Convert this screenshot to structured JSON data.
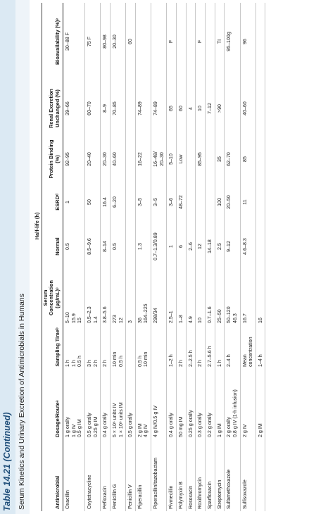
{
  "table_label": "Table 14.21 (Continued)",
  "caption": "Serum Kinetics and Urinary Excretion of Antimicrobials in Humans",
  "group_header": "Half-life (h)",
  "columns": [
    "Antimicrobial",
    "Dosage/Routeᵃ",
    "Sampling Timeᵇ",
    "Serum Concentration (µg/mL)ᶜ",
    "Normal",
    "ESRDᵈ",
    "Protein Binding (%)",
    "Renal Excretion Unchanged (%)",
    "Bioavailability (%)ᵉ"
  ],
  "rows": [
    {
      "name": "Oxacillin",
      "dose": [
        "1 g orally",
        "1 g IV",
        "0.5 g IM"
      ],
      "time": [
        "1 h",
        "1 h",
        "0.5 h"
      ],
      "conc": [
        "5–10",
        "15.9",
        "15"
      ],
      "normal": [
        "0.5"
      ],
      "esrd": [
        "1"
      ],
      "binding": [
        "92–95"
      ],
      "renal": [
        "39–66"
      ],
      "bio": [
        "30–88 F"
      ]
    },
    {
      "name": "Oxytetracycline",
      "dose": [
        "0.5 g orally",
        "0.25 g IM"
      ],
      "time": [
        "3 h",
        "2 h"
      ],
      "conc": [
        "0.5–2.3",
        "1.4"
      ],
      "normal": [
        "8.5–9.6"
      ],
      "esrd": [
        "50"
      ],
      "binding": [
        "20–40"
      ],
      "renal": [
        "60–70"
      ],
      "bio": [
        "75 F"
      ]
    },
    {
      "name": "Pefloxacin",
      "dose": [
        "0.4 g orally"
      ],
      "time": [
        "2 h"
      ],
      "conc": [
        "3.8–5.6"
      ],
      "normal": [
        "8–14"
      ],
      "esrd": [
        "16.4"
      ],
      "binding": [
        "20–30"
      ],
      "renal": [
        "8–9"
      ],
      "bio": [
        "80–98"
      ]
    },
    {
      "name": "Penicillin G",
      "dose": [
        "5 × 10⁶ units IV",
        "1 × 10⁶ units IM"
      ],
      "time": [
        "10 min",
        "0.5 h"
      ],
      "conc": [
        "273",
        "12"
      ],
      "normal": [
        "0.5"
      ],
      "esrd": [
        "6–20"
      ],
      "binding": [
        "40–60"
      ],
      "renal": [
        "70–85"
      ],
      "bio": [
        "20–30"
      ]
    },
    {
      "name": "Penicillin V",
      "dose": [
        "0.5 g orally"
      ],
      "time": [
        ""
      ],
      "conc": [
        "3"
      ],
      "normal": [
        ""
      ],
      "esrd": [
        ""
      ],
      "binding": [
        ""
      ],
      "renal": [
        ""
      ],
      "bio": [
        "60"
      ]
    },
    {
      "name": "Piperacillin",
      "dose": [
        "2 g IM",
        "4 g IV"
      ],
      "time": [
        "0.5 h",
        "10 min"
      ],
      "conc": [
        "36",
        "164–225"
      ],
      "normal": [
        "1.3"
      ],
      "esrd": [
        "3–5"
      ],
      "binding": [
        "16–22"
      ],
      "renal": [
        "74–89"
      ],
      "bio": [
        ""
      ]
    },
    {
      "name": "Piperacillin/tazobactam",
      "dose": [
        "4 g IV/0.5 g IV"
      ],
      "time": [
        ""
      ],
      "conc": [
        "298/34"
      ],
      "normal": [
        "0.7–1.3/0.89"
      ],
      "esrd": [
        "3–5"
      ],
      "binding": [
        "16–48/",
        "20–30"
      ],
      "renal": [
        "74–89"
      ],
      "bio": [
        ""
      ]
    },
    {
      "name": "Pivmecillin",
      "dose": [
        "0.4 g orally"
      ],
      "time": [
        "1–2 h"
      ],
      "conc": [
        "2.5–1"
      ],
      "normal": [
        "1"
      ],
      "esrd": [
        "3–6"
      ],
      "binding": [
        "5–10"
      ],
      "renal": [
        "65"
      ],
      "bio": [
        "F"
      ]
    },
    {
      "name": "Polymyxin B",
      "dose": [
        "50 mg IM"
      ],
      "time": [
        "2 h"
      ],
      "conc": [
        "1–8"
      ],
      "normal": [
        "6"
      ],
      "esrd": [
        "48–72"
      ],
      "binding": [
        "Low"
      ],
      "renal": [
        "60"
      ],
      "bio": [
        ""
      ]
    },
    {
      "name": "Rosoxacin",
      "dose": [
        "0.25 g orally"
      ],
      "time": [
        "2–2.5 h"
      ],
      "conc": [
        "4.9"
      ],
      "normal": [
        "2–6"
      ],
      "esrd": [
        ""
      ],
      "binding": [
        ""
      ],
      "renal": [
        "4"
      ],
      "bio": [
        ""
      ]
    },
    {
      "name": "Roxithromycin",
      "dose": [
        "0.3 g orally"
      ],
      "time": [
        "2 h"
      ],
      "conc": [
        "10"
      ],
      "normal": [
        "12"
      ],
      "esrd": [
        ""
      ],
      "binding": [
        "85–95"
      ],
      "renal": [
        "10"
      ],
      "bio": [
        "F"
      ]
    },
    {
      "name": "Sparfloxacin",
      "dose": [
        "0.2 g orally"
      ],
      "time": [
        "2.7–5.6 h"
      ],
      "conc": [
        "0.7–1.6"
      ],
      "normal": [
        "14–18"
      ],
      "esrd": [
        ""
      ],
      "binding": [
        ""
      ],
      "renal": [
        "7–12"
      ],
      "bio": [
        ""
      ]
    },
    {
      "name": "Streptomycin",
      "dose": [
        "1 g IM"
      ],
      "time": [
        "1 h"
      ],
      "conc": [
        "25–50"
      ],
      "normal": [
        "2.5"
      ],
      "esrd": [
        "100"
      ],
      "binding": [
        "35"
      ],
      "renal": [
        ">90"
      ],
      "bio": [
        "TI"
      ]
    },
    {
      "name": "Sulfamethoxazole",
      "dose": [
        "2 g orally",
        "0.8 g IV (1-h infusion)"
      ],
      "time": [
        "2–4 h"
      ],
      "conc": [
        "50–120",
        "46.3"
      ],
      "normal": [
        "9–12"
      ],
      "esrd": [
        "20–50"
      ],
      "binding": [
        "62–70"
      ],
      "renal": [
        ""
      ],
      "bio": [
        "95–100g"
      ]
    },
    {
      "name": "Sulfisoxazole",
      "dose": [
        "2 g IV"
      ],
      "time": [
        "Mean",
        "concentration"
      ],
      "conc": [
        "16.7"
      ],
      "normal": [
        "4.6–8.3"
      ],
      "esrd": [
        "11"
      ],
      "binding": [
        "85"
      ],
      "renal": [
        "40–60"
      ],
      "bio": [
        "96"
      ]
    },
    {
      "name": "",
      "dose": [
        "2 g IM"
      ],
      "time": [
        "1–4 h"
      ],
      "conc": [
        "16"
      ],
      "normal": [
        ""
      ],
      "esrd": [
        ""
      ],
      "binding": [
        ""
      ],
      "renal": [
        ""
      ],
      "bio": [
        ""
      ]
    }
  ]
}
